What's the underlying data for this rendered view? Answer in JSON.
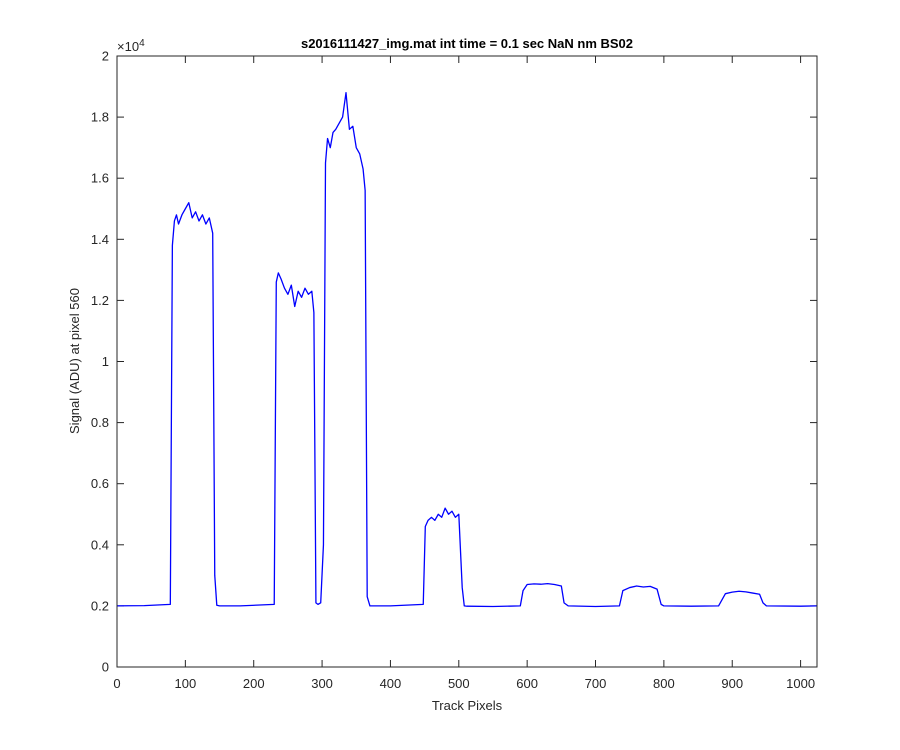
{
  "chart_data": {
    "type": "line",
    "title": "s2016111427_img.mat int time = 0.1 sec  NaN nm BS02",
    "xlabel": "Track Pixels",
    "ylabel": "Signal (ADU) at pixel 560",
    "xlim": [
      0,
      1024
    ],
    "ylim": [
      0,
      20000
    ],
    "y_exponent_label": "×10",
    "y_exponent_power": "4",
    "x_ticks": [
      0,
      100,
      200,
      300,
      400,
      500,
      600,
      700,
      800,
      900,
      1000
    ],
    "x_tick_labels": [
      "0",
      "100",
      "200",
      "300",
      "400",
      "500",
      "600",
      "700",
      "800",
      "900",
      "1000"
    ],
    "y_ticks": [
      0,
      2000,
      4000,
      6000,
      8000,
      10000,
      12000,
      14000,
      16000,
      18000,
      20000
    ],
    "y_tick_labels": [
      "0",
      "0.2",
      "0.4",
      "0.6",
      "0.8",
      "1",
      "1.2",
      "1.4",
      "1.6",
      "1.8",
      "2"
    ],
    "grid": false,
    "line_color": "#0000ff",
    "series": [
      {
        "x": [
          0,
          40,
          78,
          81,
          84,
          87,
          90,
          95,
          100,
          105,
          110,
          115,
          120,
          125,
          130,
          135,
          140,
          143,
          146,
          150,
          180,
          230,
          233,
          236,
          240,
          245,
          250,
          255,
          260,
          265,
          270,
          275,
          280,
          285,
          288,
          291,
          294,
          298,
          302,
          305,
          308,
          312,
          316,
          320,
          325,
          330,
          335,
          340,
          345,
          350,
          355,
          360,
          363,
          366,
          370,
          400,
          448,
          451,
          455,
          460,
          465,
          470,
          475,
          480,
          485,
          490,
          495,
          500,
          505,
          508,
          512,
          550,
          590,
          594,
          600,
          610,
          620,
          630,
          640,
          650,
          654,
          660,
          700,
          735,
          740,
          750,
          760,
          770,
          780,
          790,
          796,
          800,
          840,
          880,
          885,
          890,
          900,
          910,
          920,
          930,
          940,
          945,
          950,
          1000,
          1024
        ],
        "y": [
          2000,
          2010,
          2050,
          13800,
          14600,
          14800,
          14500,
          14800,
          15000,
          15200,
          14700,
          14900,
          14600,
          14800,
          14500,
          14700,
          14200,
          3000,
          2020,
          2000,
          2000,
          2050,
          12600,
          12900,
          12700,
          12400,
          12200,
          12500,
          11800,
          12300,
          12100,
          12400,
          12200,
          12300,
          11600,
          2100,
          2050,
          2100,
          4000,
          16500,
          17300,
          17000,
          17500,
          17600,
          17800,
          18000,
          18800,
          17600,
          17700,
          17000,
          16800,
          16300,
          15600,
          2300,
          2000,
          2000,
          2050,
          4600,
          4800,
          4900,
          4800,
          5000,
          4900,
          5200,
          5000,
          5100,
          4900,
          5000,
          2600,
          2000,
          1990,
          1980,
          2000,
          2500,
          2700,
          2720,
          2710,
          2730,
          2700,
          2650,
          2100,
          2000,
          1980,
          2000,
          2500,
          2600,
          2650,
          2620,
          2640,
          2550,
          2050,
          2000,
          1990,
          2000,
          2200,
          2400,
          2450,
          2480,
          2460,
          2420,
          2380,
          2100,
          2000,
          1990,
          2000
        ]
      }
    ]
  }
}
